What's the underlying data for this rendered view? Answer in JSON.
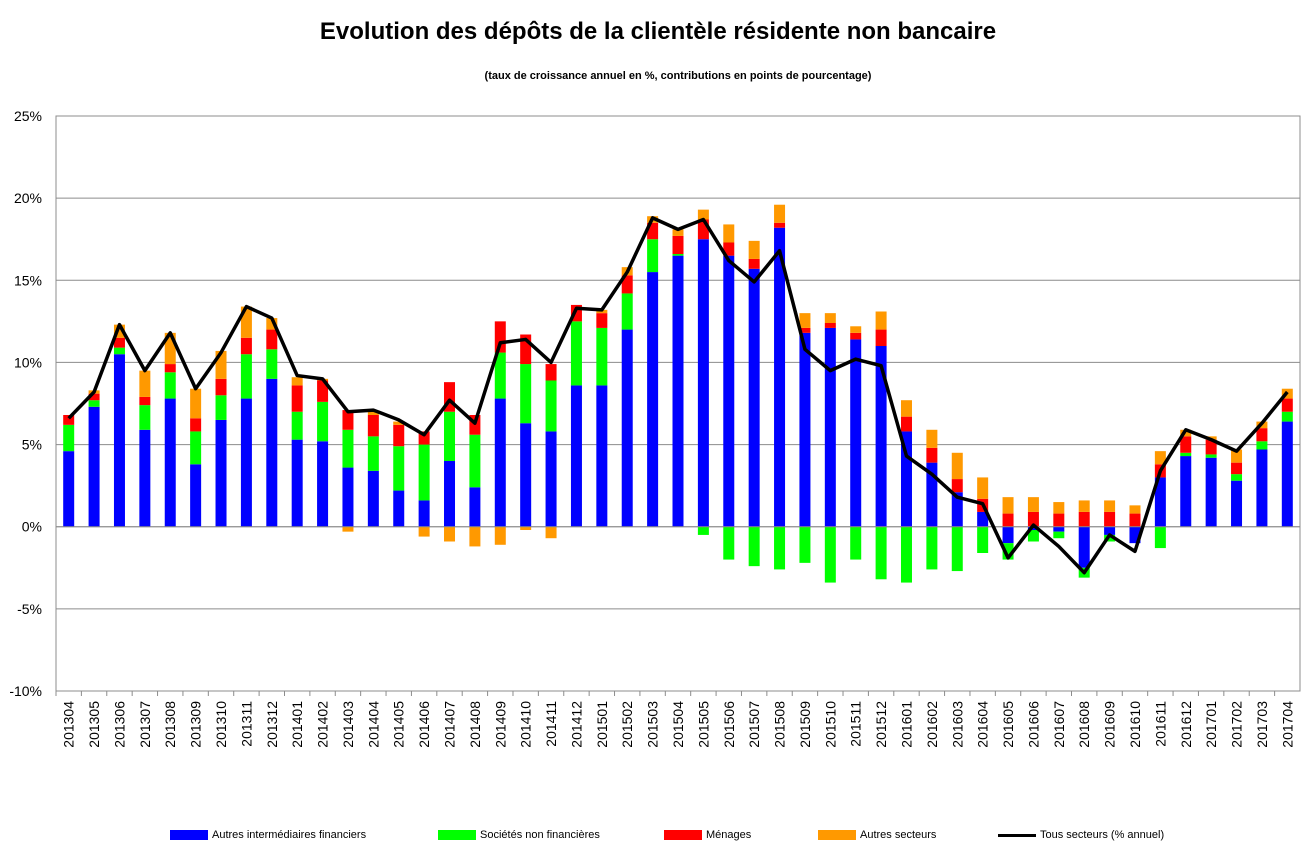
{
  "title": "Evolution des dépôts de la clientèle résidente non bancaire",
  "subtitle": "(taux de croissance annuel en %, contributions en points de pourcentage)",
  "chart_data": {
    "type": "bar",
    "stacked": true,
    "title": "Evolution des dépôts de la clientèle résidente non bancaire",
    "subtitle": "(taux de croissance annuel en %, contributions en points de pourcentage)",
    "ylim": [
      -10,
      25
    ],
    "yticks": [
      -10,
      -5,
      0,
      5,
      10,
      15,
      20,
      25
    ],
    "ytick_labels": [
      "-10%",
      "-5%",
      "0%",
      "5%",
      "10%",
      "15%",
      "20%",
      "25%"
    ],
    "grid": true,
    "legend_position": "bottom",
    "categories": [
      "201304",
      "201305",
      "201306",
      "201307",
      "201308",
      "201309",
      "201310",
      "201311",
      "201312",
      "201401",
      "201402",
      "201403",
      "201404",
      "201405",
      "201406",
      "201407",
      "201408",
      "201409",
      "201410",
      "201411",
      "201412",
      "201501",
      "201502",
      "201503",
      "201504",
      "201505",
      "201506",
      "201507",
      "201508",
      "201509",
      "201510",
      "201511",
      "201512",
      "201601",
      "201602",
      "201603",
      "201604",
      "201605",
      "201606",
      "201607",
      "201608",
      "201609",
      "201610",
      "201611",
      "201612",
      "201701",
      "201702",
      "201703",
      "201704"
    ],
    "series": [
      {
        "name": "Autres intermédiaires financiers",
        "kind": "bar",
        "color": "#0000ff",
        "values": [
          4.6,
          7.3,
          10.5,
          5.9,
          7.8,
          3.8,
          6.5,
          7.8,
          9.0,
          5.3,
          5.2,
          3.6,
          3.4,
          2.2,
          1.6,
          4.0,
          2.4,
          7.8,
          6.3,
          5.8,
          8.6,
          8.6,
          12.0,
          15.5,
          16.5,
          17.5,
          16.5,
          15.7,
          18.2,
          11.8,
          12.1,
          11.4,
          11.0,
          5.8,
          3.9,
          2.1,
          0.9,
          -1.0,
          -0.2,
          -0.3,
          -2.5,
          -0.5,
          -1.0,
          3.0,
          4.3,
          4.2,
          2.8,
          4.7,
          6.4
        ]
      },
      {
        "name": "Sociétés non financières",
        "kind": "bar",
        "color": "#00ff00",
        "values": [
          1.6,
          0.4,
          0.4,
          1.5,
          1.6,
          2.0,
          1.5,
          2.7,
          1.8,
          1.7,
          2.4,
          2.3,
          2.1,
          2.7,
          3.4,
          3.0,
          3.2,
          2.8,
          3.6,
          3.1,
          3.9,
          3.5,
          2.2,
          2.0,
          0.1,
          -0.5,
          -2.0,
          -2.4,
          -2.6,
          -2.2,
          -3.4,
          -2.0,
          -3.2,
          -3.4,
          -2.6,
          -2.7,
          -1.6,
          -1.0,
          -0.7,
          -0.4,
          -0.6,
          -0.4,
          0.0,
          -1.3,
          0.2,
          0.2,
          0.4,
          0.5,
          0.6
        ]
      },
      {
        "name": "Ménages",
        "kind": "bar",
        "color": "#ff0000",
        "values": [
          0.6,
          0.4,
          0.6,
          0.5,
          0.5,
          0.8,
          1.0,
          1.0,
          1.2,
          1.6,
          1.3,
          1.2,
          1.3,
          1.3,
          0.8,
          1.8,
          1.2,
          1.9,
          1.8,
          1.0,
          1.0,
          0.9,
          1.1,
          1.0,
          1.1,
          1.2,
          0.8,
          0.6,
          0.3,
          0.3,
          0.3,
          0.4,
          1.0,
          0.9,
          0.9,
          0.8,
          0.8,
          0.8,
          0.9,
          0.8,
          0.9,
          0.9,
          0.8,
          0.8,
          1.0,
          0.9,
          0.7,
          0.8,
          0.8
        ]
      },
      {
        "name": "Autres secteurs",
        "kind": "bar",
        "color": "#ff9900",
        "values": [
          0.0,
          0.2,
          0.8,
          1.6,
          1.9,
          1.8,
          1.7,
          1.9,
          0.7,
          0.5,
          0.1,
          -0.3,
          0.2,
          0.2,
          -0.6,
          -0.9,
          -1.2,
          -1.1,
          -0.2,
          -0.7,
          0.0,
          0.2,
          0.5,
          0.4,
          0.4,
          0.6,
          1.1,
          1.1,
          1.1,
          0.9,
          0.6,
          0.4,
          1.1,
          1.0,
          1.1,
          1.6,
          1.3,
          1.0,
          0.9,
          0.7,
          0.7,
          0.7,
          0.5,
          0.8,
          0.4,
          0.2,
          0.8,
          0.4,
          0.6
        ]
      },
      {
        "name": "Tous secteurs (% annuel)",
        "kind": "line",
        "color": "#000000",
        "values": [
          6.6,
          8.2,
          12.3,
          9.5,
          11.8,
          8.4,
          10.6,
          13.4,
          12.7,
          9.2,
          9.0,
          7.0,
          7.1,
          6.5,
          5.6,
          7.7,
          6.3,
          11.2,
          11.4,
          10.0,
          13.3,
          13.2,
          15.5,
          18.8,
          18.1,
          18.7,
          16.2,
          14.9,
          16.8,
          10.8,
          9.5,
          10.2,
          9.8,
          4.3,
          3.2,
          1.8,
          1.4,
          -1.9,
          0.1,
          -1.2,
          -2.8,
          -0.5,
          -1.5,
          3.4,
          5.9,
          5.3,
          4.6,
          6.3,
          8.2
        ]
      }
    ]
  }
}
